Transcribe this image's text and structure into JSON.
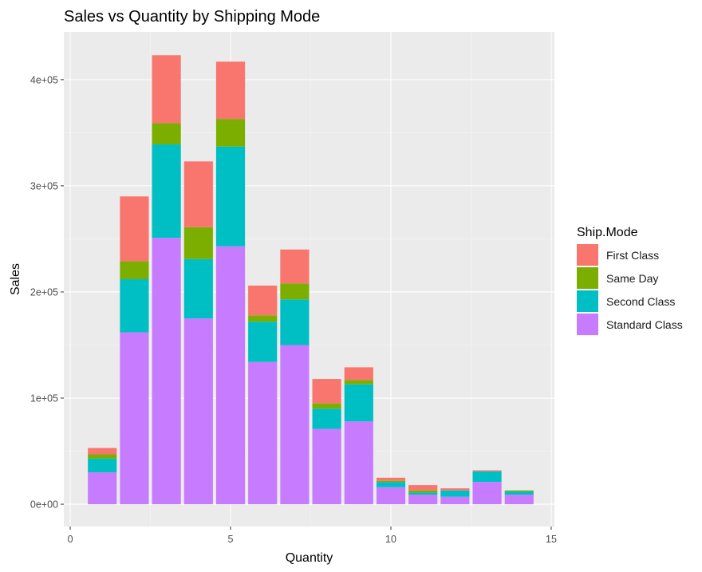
{
  "chart_data": {
    "type": "bar",
    "stacked": true,
    "title": "Sales vs Quantity by Shipping Mode",
    "xlabel": "Quantity",
    "ylabel": "Sales",
    "xlim": [
      -0.2,
      15.1
    ],
    "ylim": [
      -21000,
      445000
    ],
    "x_ticks": [
      0,
      5,
      10,
      15
    ],
    "x_tick_labels": [
      "0",
      "5",
      "10",
      "15"
    ],
    "y_ticks": [
      0,
      100000,
      200000,
      300000,
      400000
    ],
    "y_tick_labels": [
      "0e+00",
      "1e+05",
      "2e+05",
      "3e+05",
      "4e+05"
    ],
    "grid": true,
    "legend_position": "right",
    "legend_title": "Ship.Mode",
    "x": [
      1,
      2,
      3,
      4,
      5,
      6,
      7,
      8,
      9,
      10,
      11,
      12,
      13,
      14
    ],
    "stack_order": [
      "Standard Class",
      "Second Class",
      "Same Day",
      "First Class"
    ],
    "series": [
      {
        "name": "First Class",
        "color": "#F8766D",
        "values": [
          6000,
          61000,
          64000,
          62000,
          54000,
          28000,
          32000,
          23000,
          12000,
          3000,
          5000,
          2000,
          1000,
          0
        ]
      },
      {
        "name": "Same Day",
        "color": "#7CAE00",
        "values": [
          4000,
          17000,
          20000,
          30000,
          26000,
          6000,
          15000,
          5000,
          4000,
          1000,
          2000,
          0,
          0,
          1000
        ]
      },
      {
        "name": "Second Class",
        "color": "#00BFC4",
        "values": [
          13000,
          50000,
          88000,
          56000,
          94000,
          38000,
          43000,
          19000,
          35000,
          5000,
          2000,
          6000,
          10000,
          3000
        ]
      },
      {
        "name": "Standard Class",
        "color": "#C77CFF",
        "values": [
          30000,
          162000,
          251000,
          175000,
          243000,
          134000,
          150000,
          71000,
          78000,
          16000,
          9000,
          7000,
          21000,
          9000
        ]
      }
    ]
  }
}
